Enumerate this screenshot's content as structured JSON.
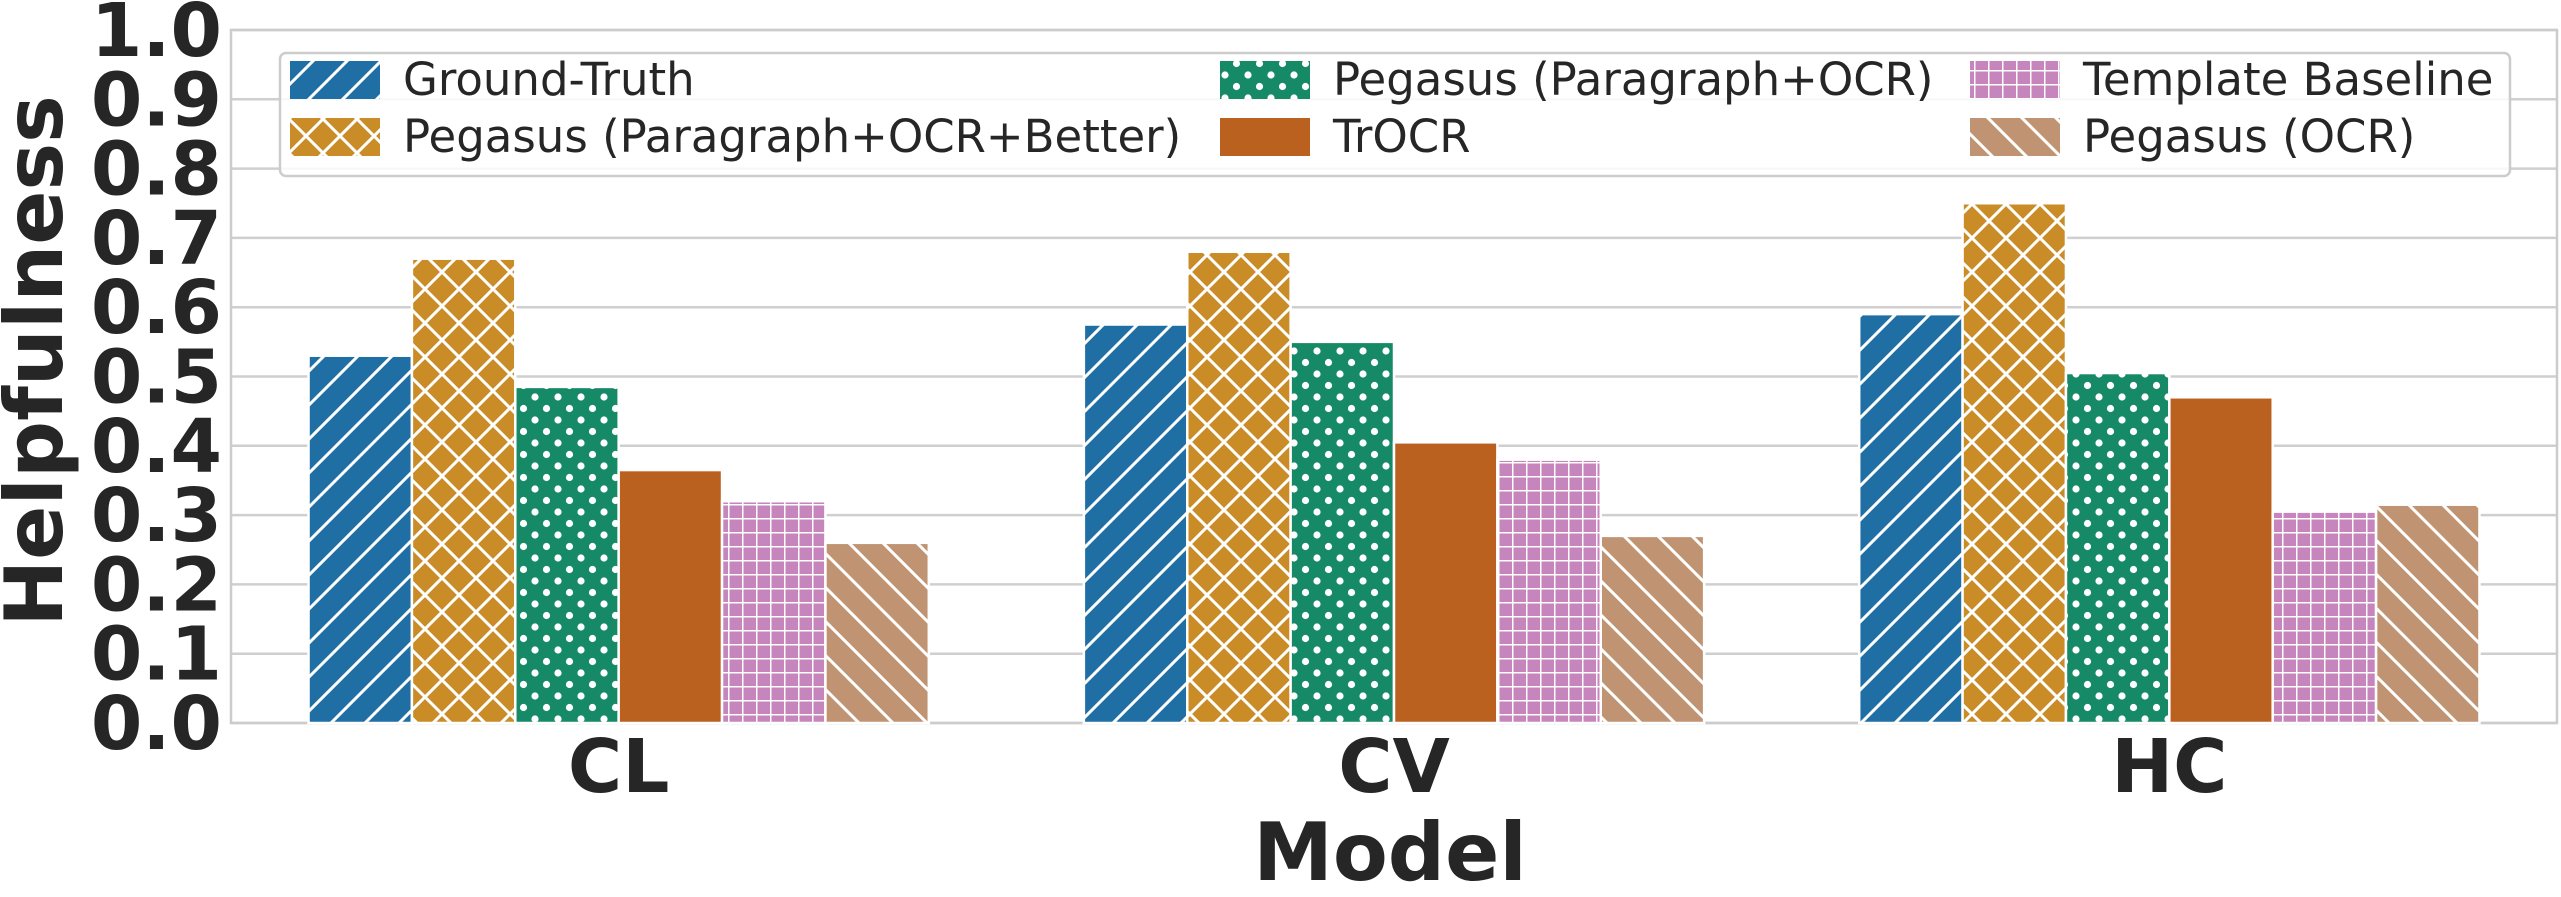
{
  "chart_data": {
    "type": "bar",
    "xlabel": "Model",
    "ylabel": "Helpfulness",
    "ylim": [
      0.0,
      1.0
    ],
    "yticks": [
      "0.0",
      "0.1",
      "0.2",
      "0.3",
      "0.4",
      "0.5",
      "0.6",
      "0.7",
      "0.8",
      "0.9",
      "1.0"
    ],
    "grid": true,
    "legend_position": "top",
    "categories": [
      "CL",
      "CV",
      "HC"
    ],
    "series": [
      {
        "name": "Ground-Truth",
        "color": "#1f6fa5",
        "hatch": "diagonal",
        "values": [
          0.53,
          0.575,
          0.59
        ]
      },
      {
        "name": "Pegasus (Paragraph+OCR+Better)",
        "color": "#c98c27",
        "hatch": "cross",
        "values": [
          0.67,
          0.68,
          0.75
        ]
      },
      {
        "name": "Pegasus (Paragraph+OCR)",
        "color": "#168a67",
        "hatch": "dots",
        "values": [
          0.485,
          0.55,
          0.505
        ]
      },
      {
        "name": "TrOCR",
        "color": "#bb6120",
        "hatch": "none",
        "values": [
          0.365,
          0.405,
          0.47
        ]
      },
      {
        "name": "Template Baseline",
        "color": "#c785bd",
        "hatch": "grid",
        "values": [
          0.32,
          0.38,
          0.305
        ]
      },
      {
        "name": "Pegasus (OCR)",
        "color": "#c09472",
        "hatch": "backslash",
        "values": [
          0.26,
          0.27,
          0.315
        ]
      }
    ]
  }
}
